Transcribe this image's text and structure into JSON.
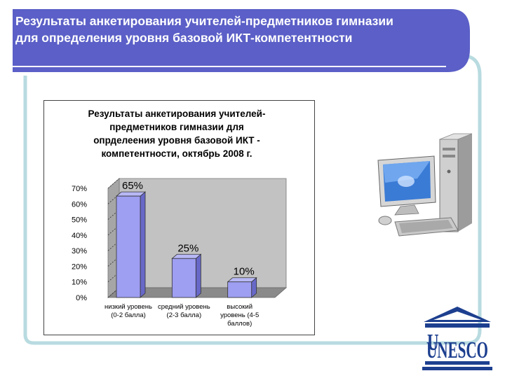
{
  "slide": {
    "title": "Результаты анкетирования учителей-предметников гимназии для определения уровня базовой ИКТ-компетентности"
  },
  "colors": {
    "title_bar": "#5b5fc7",
    "frame": "#b8dbe0",
    "bar_front": "#9e9ef2",
    "bar_side": "#6868c8",
    "plot_wall": "#c2c2c2",
    "plot_floor": "#8a8a8a"
  },
  "chart_data": {
    "type": "bar",
    "title_lines": [
      "Результаты анкетирования учителей-",
      "предметников  гимназии для",
      "опрделеения уровня базовой ИКТ -",
      "компетентности, октябрь 2008 г."
    ],
    "categories": [
      [
        "низкий уровень",
        "(0-2 балла)"
      ],
      [
        "средний уровень",
        "(2-3 балла)"
      ],
      [
        "высокий",
        "уровень (4-5",
        "баллов)"
      ]
    ],
    "values": [
      65,
      25,
      10
    ],
    "data_labels": [
      "65%",
      "25%",
      "10%"
    ],
    "y_ticks": [
      "0%",
      "10%",
      "20%",
      "30%",
      "40%",
      "50%",
      "60%",
      "70%"
    ],
    "ylim": [
      0,
      70
    ],
    "y_unit": "%",
    "style": "3d-bar",
    "legend": "none",
    "gridlines": "dotted"
  },
  "decor": {
    "computer_icon": "desktop-computer-icon",
    "unesco_text": "UNESCO"
  }
}
